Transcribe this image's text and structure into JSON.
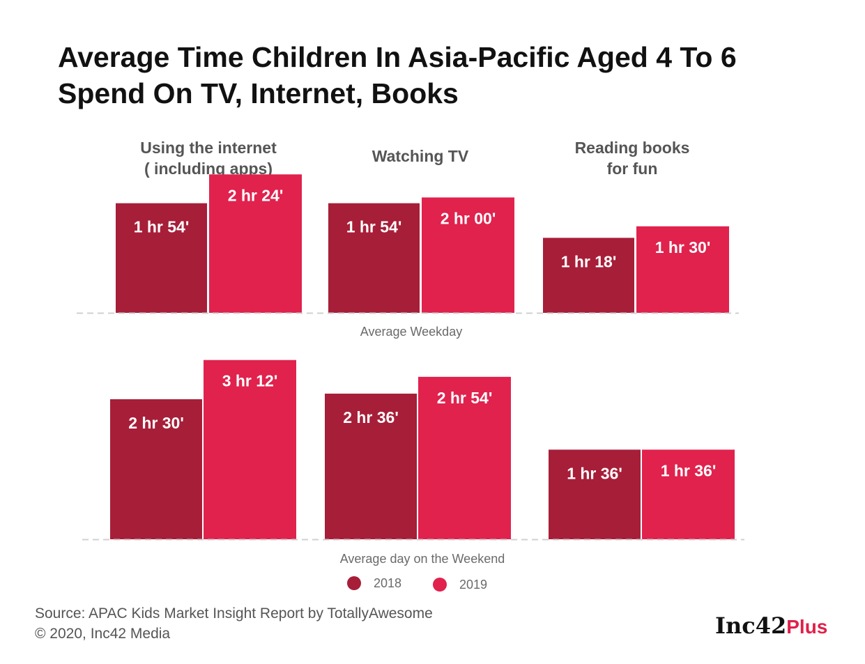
{
  "title_lines": [
    "Average Time Children In Asia-Pacific Aged 4 To 6",
    "Spend On TV, Internet, Books"
  ],
  "chart_data": {
    "type": "bar",
    "title": "Average Time Children In Asia-Pacific Aged 4 To 6 Spend On TV, Internet, Books",
    "unit": "minutes",
    "categories": [
      [
        "Using the internet",
        "( including apps)"
      ],
      [
        "Watching TV"
      ],
      [
        "Reading books",
        "for fun"
      ]
    ],
    "legend": [
      {
        "name": "2018",
        "color": "#a71e38"
      },
      {
        "name": "2019",
        "color": "#e0224d"
      }
    ],
    "panels": [
      {
        "name": "Average Weekday",
        "series": [
          {
            "name": "2018",
            "values": [
              114,
              114,
              78
            ],
            "labels": [
              "1 hr 54'",
              "1 hr 54'",
              "1 hr 18'"
            ]
          },
          {
            "name": "2019",
            "values": [
              144,
              120,
              90
            ],
            "labels": [
              "2 hr 24'",
              "2 hr 00'",
              "1 hr 30'"
            ]
          }
        ]
      },
      {
        "name": "Average day on the Weekend",
        "series": [
          {
            "name": "2018",
            "values": [
              150,
              156,
              96
            ],
            "labels": [
              "2 hr 30'",
              "2 hr 36'",
              "1 hr 36'"
            ]
          },
          {
            "name": "2019",
            "values": [
              192,
              174,
              96
            ],
            "labels": [
              "3 hr 12'",
              "2 hr 54'",
              "1 hr 36'"
            ]
          }
        ]
      }
    ]
  },
  "source_lines": [
    "Source: APAC Kids Market Insight Report by TotallyAwesome",
    "© 2020, Inc42 Media"
  ],
  "brand": {
    "main": "Inc42",
    "plus": "Plus"
  },
  "colors": {
    "bar_2018": "#a71e38",
    "bar_2019": "#e0224d",
    "baseline": "#d0d0d0"
  }
}
